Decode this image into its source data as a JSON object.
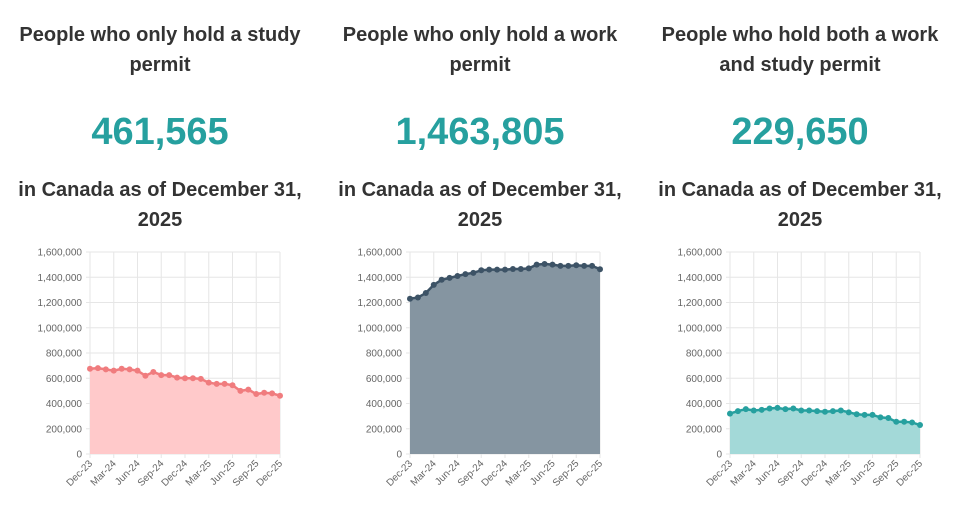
{
  "panels": [
    {
      "title": "People who only hold a study permit",
      "value": "461,565",
      "subtitle": "in Canada as of December 31, 2025",
      "color": "#f07c7e",
      "fill": "#ffc9ca"
    },
    {
      "title": "People who only hold a work permit",
      "value": "1,463,805",
      "subtitle": "in Canada as of December 31, 2025",
      "color": "#3d5366",
      "fill": "#8595a1"
    },
    {
      "title": "People who hold both a work and study permit",
      "value": "229,650",
      "subtitle": "in Canada as of December 31, 2025",
      "color": "#26a09f",
      "fill": "#a3d9d8"
    }
  ],
  "chart_data": [
    {
      "type": "area",
      "x_ticks": [
        "Dec-23",
        "Mar-24",
        "Jun-24",
        "Sep-24",
        "Dec-24",
        "Mar-25",
        "Jun-25",
        "Sep-25",
        "Dec-25"
      ],
      "y_ticks": [
        "0",
        "200,000",
        "400,000",
        "600,000",
        "800,000",
        "1,000,000",
        "1,200,000",
        "1,400,000",
        "1,600,000"
      ],
      "ylim": [
        0,
        1600000
      ],
      "grid": true,
      "x": [
        "Dec-23",
        "Jan-24",
        "Feb-24",
        "Mar-24",
        "Apr-24",
        "May-24",
        "Jun-24",
        "Jul-24",
        "Aug-24",
        "Sep-24",
        "Oct-24",
        "Nov-24",
        "Dec-24",
        "Jan-25",
        "Feb-25",
        "Mar-25",
        "Apr-25",
        "May-25",
        "Jun-25",
        "Jul-25",
        "Aug-25",
        "Sep-25",
        "Oct-25",
        "Nov-25",
        "Dec-25"
      ],
      "values": [
        675000,
        680000,
        670000,
        660000,
        675000,
        670000,
        660000,
        620000,
        650000,
        625000,
        625000,
        605000,
        600000,
        600000,
        595000,
        565000,
        555000,
        555000,
        545000,
        500000,
        510000,
        475000,
        485000,
        480000,
        461565
      ]
    },
    {
      "type": "area",
      "x_ticks": [
        "Dec-23",
        "Mar-24",
        "Jun-24",
        "Sep-24",
        "Dec-24",
        "Mar-25",
        "Jun-25",
        "Sep-25",
        "Dec-25"
      ],
      "y_ticks": [
        "0",
        "200,000",
        "400,000",
        "600,000",
        "800,000",
        "1,000,000",
        "1,200,000",
        "1,400,000",
        "1,600,000"
      ],
      "ylim": [
        0,
        1600000
      ],
      "grid": true,
      "x": [
        "Dec-23",
        "Jan-24",
        "Feb-24",
        "Mar-24",
        "Apr-24",
        "May-24",
        "Jun-24",
        "Jul-24",
        "Aug-24",
        "Sep-24",
        "Oct-24",
        "Nov-24",
        "Dec-24",
        "Jan-25",
        "Feb-25",
        "Mar-25",
        "Apr-25",
        "May-25",
        "Jun-25",
        "Jul-25",
        "Aug-25",
        "Sep-25",
        "Oct-25",
        "Nov-25",
        "Dec-25"
      ],
      "values": [
        1230000,
        1240000,
        1275000,
        1340000,
        1380000,
        1395000,
        1410000,
        1425000,
        1435000,
        1455000,
        1460000,
        1460000,
        1460000,
        1465000,
        1465000,
        1470000,
        1500000,
        1505000,
        1500000,
        1490000,
        1490000,
        1495000,
        1490000,
        1490000,
        1463805
      ]
    },
    {
      "type": "area",
      "x_ticks": [
        "Dec-23",
        "Mar-24",
        "Jun-24",
        "Sep-24",
        "Dec-24",
        "Mar-25",
        "Jun-25",
        "Sep-25",
        "Dec-25"
      ],
      "y_ticks": [
        "0",
        "200,000",
        "400,000",
        "600,000",
        "800,000",
        "1,000,000",
        "1,200,000",
        "1,400,000",
        "1,600,000"
      ],
      "ylim": [
        0,
        1600000
      ],
      "grid": true,
      "x": [
        "Dec-23",
        "Jan-24",
        "Feb-24",
        "Mar-24",
        "Apr-24",
        "May-24",
        "Jun-24",
        "Jul-24",
        "Aug-24",
        "Sep-24",
        "Oct-24",
        "Nov-24",
        "Dec-24",
        "Jan-25",
        "Feb-25",
        "Mar-25",
        "Apr-25",
        "May-25",
        "Jun-25",
        "Jul-25",
        "Aug-25",
        "Sep-25",
        "Oct-25",
        "Nov-25",
        "Dec-25"
      ],
      "values": [
        320000,
        340000,
        355000,
        345000,
        350000,
        360000,
        365000,
        355000,
        360000,
        345000,
        345000,
        340000,
        335000,
        340000,
        345000,
        330000,
        315000,
        310000,
        310000,
        290000,
        285000,
        255000,
        255000,
        250000,
        229650
      ]
    }
  ]
}
